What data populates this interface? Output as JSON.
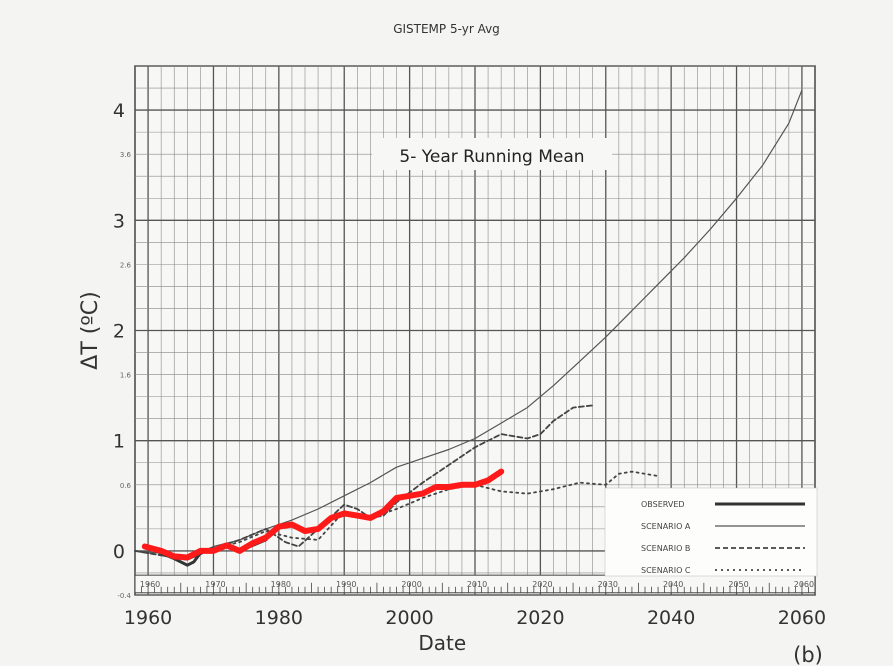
{
  "title": "GISTEMP 5-yr Avg",
  "chart_data": {
    "type": "line",
    "inner_title": "5- Year Running Mean",
    "xlabel": "Date",
    "ylabel": "ΔT (ºC)",
    "panel_label": "(b)",
    "xlim": [
      1958,
      2062
    ],
    "ylim": [
      -0.4,
      4.4
    ],
    "x_ticks": [
      1960,
      1980,
      2000,
      2020,
      2040,
      2060
    ],
    "x_tick_labels": [
      "1960",
      "1980",
      "2000",
      "2020",
      "2040",
      "2060"
    ],
    "y_ticks": [
      0,
      1,
      2,
      3,
      4
    ],
    "y_tick_labels": [
      "0",
      "1",
      "2",
      "3",
      "4"
    ],
    "y_minor_ticks": [
      -0.4,
      0.6,
      1.6,
      2.6,
      3.6
    ],
    "y_minor_tick_labels": [
      "-0.4",
      "0.6",
      "1.6",
      "2.6",
      "3.6"
    ],
    "inner_x_ticks": [
      1960,
      1970,
      1980,
      1990,
      2000,
      2010,
      2020,
      2030,
      2040,
      2050,
      2060
    ],
    "inner_x_tick_labels": [
      "1960",
      "1970",
      "1980",
      "1990",
      "2000",
      "2010",
      "2020",
      "2030",
      "2040",
      "2050",
      "2060"
    ],
    "grid": true,
    "legend_position": "bottom-right",
    "legend": [
      "OBSERVED",
      "SCENARIO A",
      "SCENARIO B",
      "SCENARIO C"
    ],
    "series": [
      {
        "name": "OBSERVED",
        "color": "#333333",
        "style": "solid-thick",
        "x": [
          1960,
          1962,
          1964,
          1966,
          1967,
          1968,
          1970,
          1972,
          1974,
          1976,
          1978
        ],
        "y": [
          0.03,
          -0.02,
          -0.07,
          -0.13,
          -0.1,
          -0.02,
          0.02,
          0.04,
          0.01,
          0.05,
          0.1
        ]
      },
      {
        "name": "SCENARIO A",
        "color": "#555555",
        "style": "solid",
        "x": [
          1958,
          1962,
          1966,
          1970,
          1974,
          1978,
          1982,
          1986,
          1990,
          1994,
          1998,
          2002,
          2006,
          2010,
          2014,
          2018,
          2022,
          2026,
          2030,
          2034,
          2038,
          2042,
          2046,
          2050,
          2054,
          2058,
          2060
        ],
        "y": [
          0.0,
          -0.02,
          -0.06,
          0.04,
          0.1,
          0.2,
          0.28,
          0.38,
          0.5,
          0.62,
          0.76,
          0.84,
          0.92,
          1.02,
          1.16,
          1.3,
          1.5,
          1.72,
          1.94,
          2.18,
          2.42,
          2.66,
          2.92,
          3.2,
          3.5,
          3.88,
          4.18
        ]
      },
      {
        "name": "SCENARIO B",
        "color": "#444444",
        "style": "dashed",
        "x": [
          1958,
          1962,
          1966,
          1970,
          1974,
          1978,
          1981,
          1983,
          1986,
          1990,
          1992,
          1994,
          1996,
          1998,
          2002,
          2006,
          2010,
          2014,
          2018,
          2020,
          2022,
          2025,
          2028
        ],
        "y": [
          0.0,
          -0.04,
          -0.08,
          0.02,
          0.1,
          0.2,
          0.08,
          0.04,
          0.2,
          0.42,
          0.38,
          0.3,
          0.32,
          0.44,
          0.62,
          0.78,
          0.94,
          1.06,
          1.02,
          1.06,
          1.18,
          1.3,
          1.32
        ]
      },
      {
        "name": "SCENARIO C",
        "color": "#444444",
        "style": "dotted",
        "x": [
          1958,
          1962,
          1966,
          1970,
          1974,
          1978,
          1982,
          1986,
          1990,
          1994,
          1998,
          2002,
          2006,
          2010,
          2014,
          2018,
          2022,
          2026,
          2030,
          2032,
          2034,
          2038
        ],
        "y": [
          0.0,
          -0.04,
          -0.08,
          0.02,
          0.08,
          0.18,
          0.12,
          0.1,
          0.36,
          0.3,
          0.38,
          0.48,
          0.56,
          0.6,
          0.54,
          0.52,
          0.56,
          0.62,
          0.6,
          0.7,
          0.72,
          0.68
        ]
      },
      {
        "name": "GISTEMP 5-yr Avg",
        "color": "#ff1a1a",
        "style": "solid-red",
        "x": [
          1959.5,
          1962,
          1964,
          1966,
          1968,
          1970,
          1972,
          1974,
          1976,
          1978,
          1980,
          1982,
          1984,
          1986,
          1988,
          1990,
          1992,
          1994,
          1996,
          1998,
          2000,
          2002,
          2004,
          2006,
          2008,
          2010,
          2012,
          2014
        ],
        "y": [
          0.04,
          0.0,
          -0.05,
          -0.06,
          0.0,
          0.0,
          0.05,
          0.0,
          0.07,
          0.12,
          0.22,
          0.24,
          0.18,
          0.2,
          0.3,
          0.34,
          0.32,
          0.3,
          0.36,
          0.48,
          0.5,
          0.52,
          0.58,
          0.58,
          0.6,
          0.6,
          0.64,
          0.72
        ]
      }
    ]
  }
}
